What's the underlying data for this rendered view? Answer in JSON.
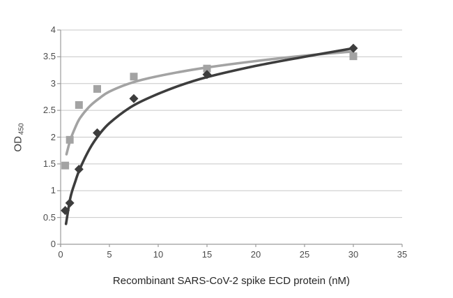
{
  "chart_data": {
    "type": "scatter",
    "title": "",
    "xlabel": "Recombinant SARS-CoV-2 spike ECD protein (nM)",
    "ylabel": "OD",
    "ylabel_subscript": "450",
    "xlim": [
      0,
      35
    ],
    "ylim": [
      0,
      4
    ],
    "xticks": [
      0,
      5,
      10,
      15,
      20,
      25,
      30,
      35
    ],
    "yticks": [
      0,
      0.5,
      1,
      1.5,
      2,
      2.5,
      3,
      3.5,
      4
    ],
    "grid": "horizontal-only",
    "legend": "none",
    "colors": {
      "background": "#ffffff",
      "gridline": "#c7c7c7",
      "axis": "#9b9b9b",
      "tick_label": "#4b4b4b",
      "axis_title": "#262626",
      "series_light": "#a3a3a3",
      "series_dark": "#3d3d3d"
    },
    "series": [
      {
        "name": "gray-squares",
        "marker": "square",
        "color": "#a3a3a3",
        "points": [
          [
            0.47,
            1.47
          ],
          [
            0.94,
            1.95
          ],
          [
            1.88,
            2.6
          ],
          [
            3.75,
            2.9
          ],
          [
            7.5,
            3.13
          ],
          [
            15,
            3.28
          ],
          [
            30,
            3.51
          ]
        ],
        "trend": [
          [
            0.6,
            1.68
          ],
          [
            1,
            1.95
          ],
          [
            1.5,
            2.18
          ],
          [
            2,
            2.36
          ],
          [
            3,
            2.58
          ],
          [
            4,
            2.73
          ],
          [
            5,
            2.85
          ],
          [
            7,
            3.0
          ],
          [
            9,
            3.1
          ],
          [
            12,
            3.21
          ],
          [
            15,
            3.3
          ],
          [
            20,
            3.42
          ],
          [
            25,
            3.52
          ],
          [
            30,
            3.6
          ]
        ]
      },
      {
        "name": "dark-diamonds",
        "marker": "diamond",
        "color": "#3d3d3d",
        "points": [
          [
            0.47,
            0.63
          ],
          [
            0.94,
            0.77
          ],
          [
            1.88,
            1.4
          ],
          [
            3.75,
            2.08
          ],
          [
            7.5,
            2.72
          ],
          [
            15,
            3.17
          ],
          [
            30,
            3.66
          ]
        ],
        "trend": [
          [
            0.55,
            0.38
          ],
          [
            1,
            0.87
          ],
          [
            1.5,
            1.17
          ],
          [
            2,
            1.42
          ],
          [
            3,
            1.79
          ],
          [
            4,
            2.06
          ],
          [
            5,
            2.26
          ],
          [
            7,
            2.54
          ],
          [
            9,
            2.73
          ],
          [
            12,
            2.95
          ],
          [
            15,
            3.12
          ],
          [
            20,
            3.33
          ],
          [
            25,
            3.5
          ],
          [
            30,
            3.66
          ]
        ]
      }
    ]
  }
}
